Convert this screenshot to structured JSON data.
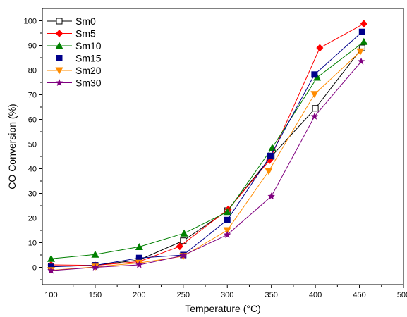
{
  "chart_data": {
    "type": "line",
    "xlabel": "Temperature (°C)",
    "ylabel": "CO Conversion (%)",
    "xlim": [
      90,
      500
    ],
    "ylim": [
      -7,
      105
    ],
    "x_ticks": [
      100,
      150,
      200,
      250,
      300,
      350,
      400,
      450,
      500
    ],
    "y_ticks": [
      0,
      10,
      20,
      30,
      40,
      50,
      60,
      70,
      80,
      90,
      100
    ],
    "grid": false,
    "legend_position": "top-left",
    "series": [
      {
        "name": "Sm0",
        "color": "#000000",
        "marker": "square-open",
        "x": [
          100,
          150,
          200,
          250,
          300,
          350,
          400,
          453
        ],
        "y": [
          0.3,
          0.8,
          3.0,
          10.8,
          23.0,
          45.0,
          64.5,
          89.0
        ]
      },
      {
        "name": "Sm5",
        "color": "#ff0000",
        "marker": "diamond",
        "x": [
          100,
          150,
          200,
          246,
          301,
          348,
          405,
          455
        ],
        "y": [
          1.0,
          0.8,
          2.3,
          8.5,
          23.5,
          43.5,
          89.0,
          98.8
        ]
      },
      {
        "name": "Sm10",
        "color": "#008000",
        "marker": "triangle-up",
        "x": [
          100,
          150,
          200,
          251,
          300,
          351,
          402,
          455
        ],
        "y": [
          3.5,
          5.2,
          8.3,
          13.8,
          22.5,
          48.5,
          77.0,
          91.5
        ]
      },
      {
        "name": "Sm15",
        "color": "#00008b",
        "marker": "square",
        "x": [
          100,
          150,
          200,
          250,
          300,
          349,
          399,
          453
        ],
        "y": [
          0.2,
          0.8,
          3.8,
          5.0,
          19.2,
          45.2,
          78.2,
          95.5
        ]
      },
      {
        "name": "Sm20",
        "color": "#ff8c00",
        "marker": "triangle-down",
        "x": [
          100,
          150,
          200,
          250,
          300,
          347,
          399,
          451
        ],
        "y": [
          -1.2,
          0.2,
          1.8,
          4.5,
          15.0,
          39.0,
          70.2,
          87.5
        ]
      },
      {
        "name": "Sm30",
        "color": "#800080",
        "marker": "star",
        "x": [
          100,
          150,
          200,
          250,
          300,
          350,
          399,
          452
        ],
        "y": [
          -1.3,
          0.0,
          1.0,
          4.8,
          13.2,
          28.8,
          61.2,
          83.5
        ]
      }
    ]
  }
}
